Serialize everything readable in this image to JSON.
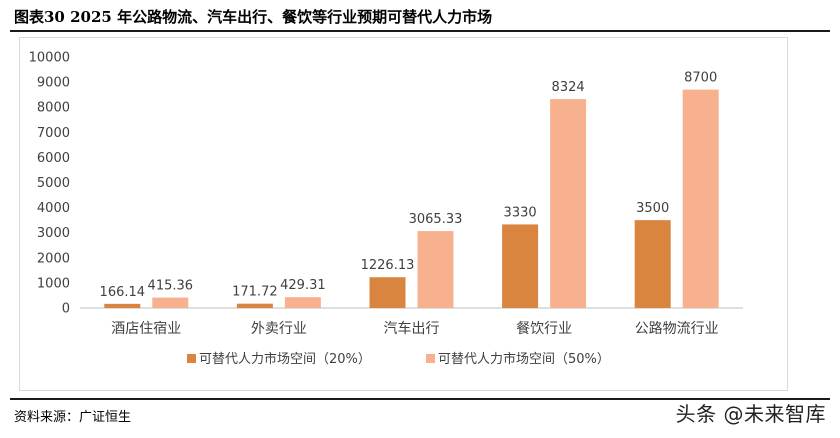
{
  "title": "图表30 2025 年公路物流、汽车出行、餐饮等行业预期可替代人力市场",
  "source": "资料来源：广证恒生",
  "watermark": "头条 @未来智库",
  "colors": {
    "series_20": "#d9843f",
    "series_50": "#f7b18f",
    "axis": "#bfbfbf",
    "text": "#404040"
  },
  "chart_data": {
    "type": "bar",
    "categories": [
      "酒店住宿业",
      "外卖行业",
      "汽车出行",
      "餐饮行业",
      "公路物流行业"
    ],
    "series": [
      {
        "name": "可替代人力市场空间（20%）",
        "values": [
          166.14,
          171.72,
          1226.13,
          3330,
          3500
        ],
        "labels": [
          "166.14",
          "171.72",
          "1226.13",
          "3330",
          "3500"
        ]
      },
      {
        "name": "可替代人力市场空间（50%）",
        "values": [
          415.36,
          429.31,
          3065.33,
          8324,
          8700
        ],
        "labels": [
          "415.36",
          "429.31",
          "3065.33",
          "8324",
          "8700"
        ]
      }
    ],
    "ylim": [
      0,
      10000
    ],
    "yticks": [
      "0",
      "1000",
      "2000",
      "3000",
      "4000",
      "5000",
      "6000",
      "7000",
      "8000",
      "9000",
      "10000"
    ],
    "xlabel": "",
    "ylabel": "",
    "grid": false,
    "legend_position": "bottom"
  }
}
